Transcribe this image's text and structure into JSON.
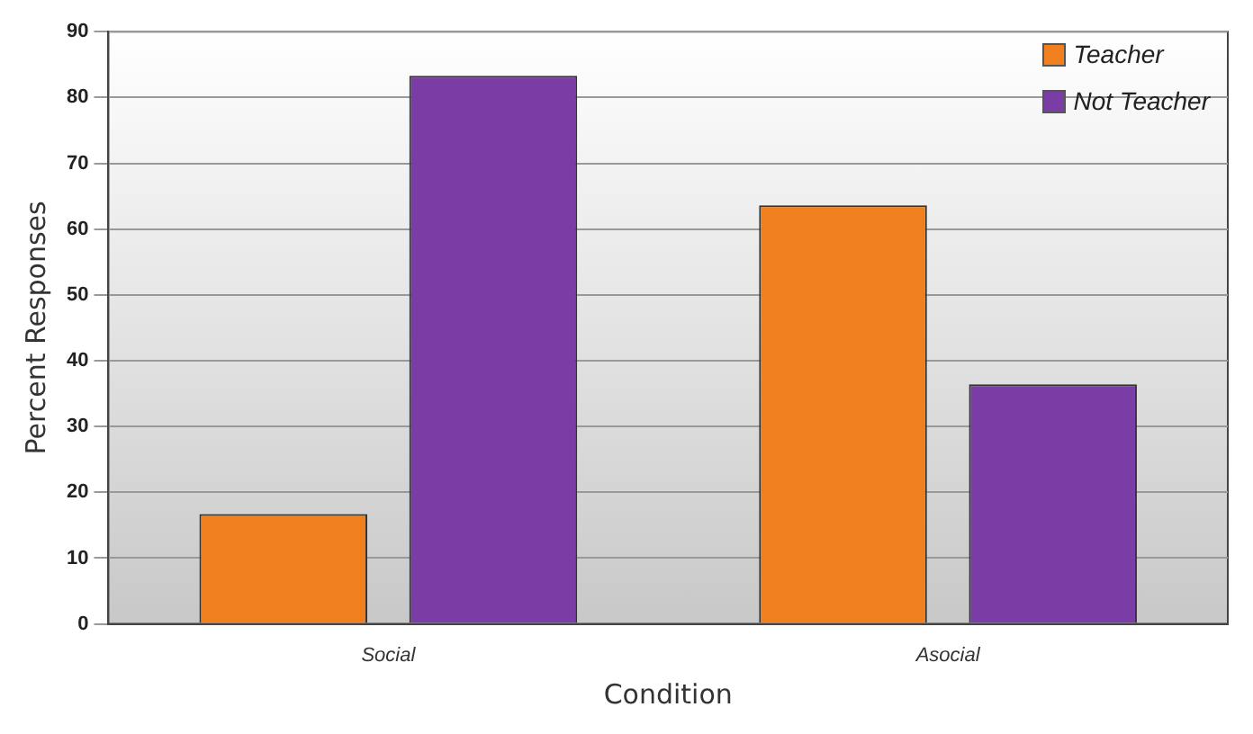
{
  "chart_data": {
    "type": "bar",
    "xlabel": "Condition",
    "ylabel": "Percent Responses",
    "categories": [
      "Social",
      "Asocial"
    ],
    "series": [
      {
        "name": "Teacher",
        "color": "#f07f1e",
        "values": [
          16.7,
          63.6
        ]
      },
      {
        "name": "Not Teacher",
        "color": "#7a3da6",
        "values": [
          83.3,
          36.4
        ]
      }
    ],
    "ylim": [
      0,
      90
    ],
    "yticks": [
      0,
      10,
      20,
      30,
      40,
      50,
      60,
      70,
      80,
      90
    ],
    "grid": "y",
    "legend": "top right"
  }
}
